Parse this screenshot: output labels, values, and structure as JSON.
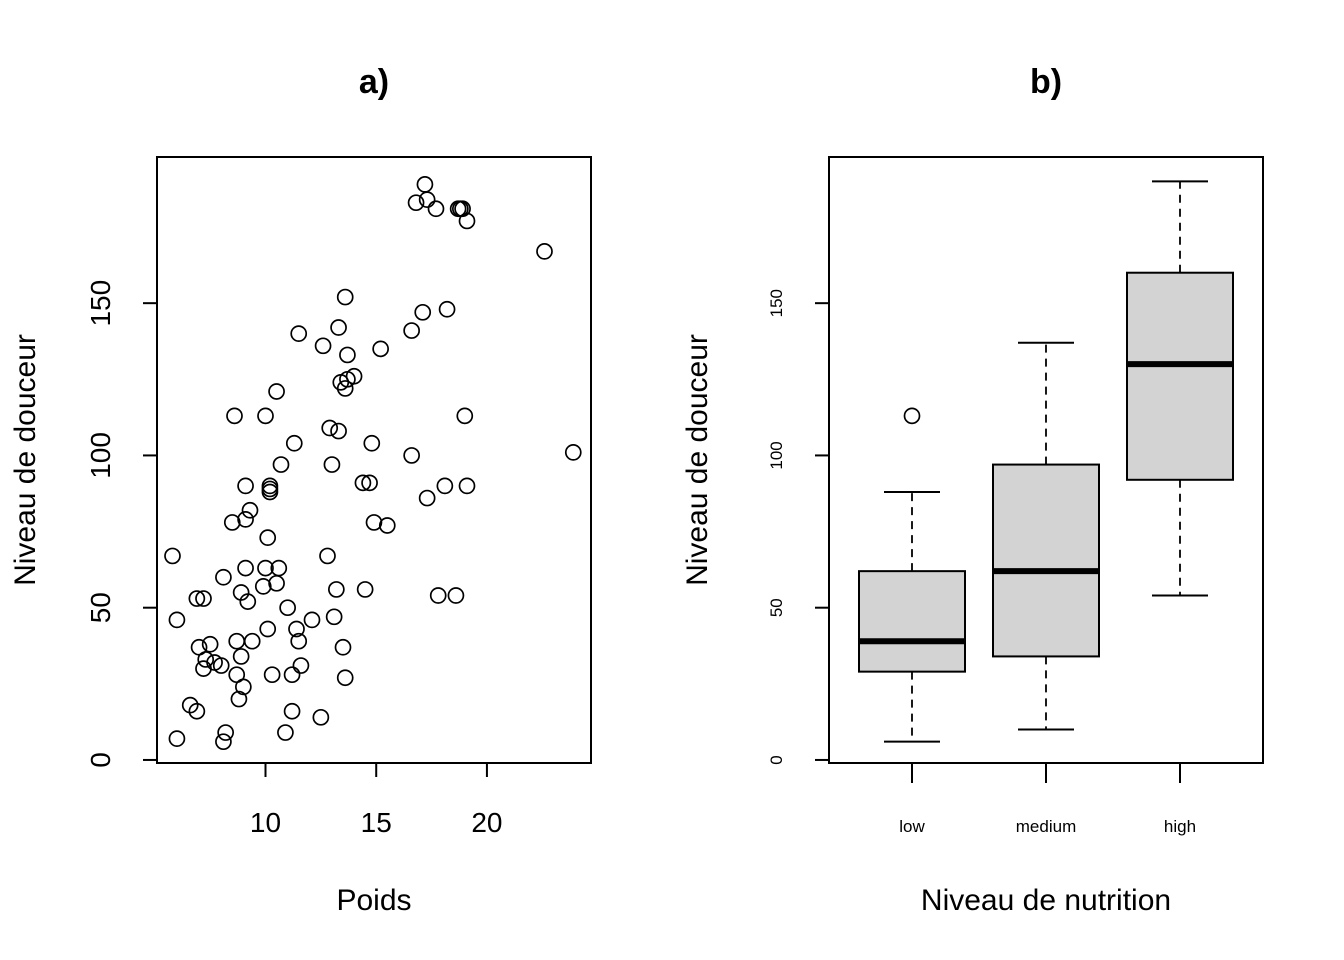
{
  "chart_data": [
    {
      "type": "scatter",
      "title": "a)",
      "xlabel": "Poids",
      "ylabel": "Niveau de douceur",
      "xlim": [
        5.1,
        24.7
      ],
      "ylim": [
        -1,
        198
      ],
      "xticks": [
        10,
        15,
        20
      ],
      "yticks": [
        0,
        50,
        100,
        150
      ],
      "grid": false,
      "marker": "open-circle",
      "points": [
        [
          5.8,
          67
        ],
        [
          6.0,
          46
        ],
        [
          6.0,
          7
        ],
        [
          6.6,
          18
        ],
        [
          6.9,
          16
        ],
        [
          6.9,
          53
        ],
        [
          7.0,
          37
        ],
        [
          7.2,
          53
        ],
        [
          7.2,
          30
        ],
        [
          7.3,
          33
        ],
        [
          7.5,
          38
        ],
        [
          7.7,
          32
        ],
        [
          8.0,
          31
        ],
        [
          8.1,
          60
        ],
        [
          8.1,
          6
        ],
        [
          8.2,
          9
        ],
        [
          8.5,
          78
        ],
        [
          8.6,
          113
        ],
        [
          8.7,
          39
        ],
        [
          8.7,
          28
        ],
        [
          8.8,
          20
        ],
        [
          8.9,
          55
        ],
        [
          8.9,
          34
        ],
        [
          9.0,
          24
        ],
        [
          9.1,
          90
        ],
        [
          9.1,
          63
        ],
        [
          9.1,
          79
        ],
        [
          9.2,
          52
        ],
        [
          9.3,
          82
        ],
        [
          9.4,
          39
        ],
        [
          9.9,
          57
        ],
        [
          10.0,
          63
        ],
        [
          10.0,
          113
        ],
        [
          10.1,
          73
        ],
        [
          10.1,
          43
        ],
        [
          10.2,
          90
        ],
        [
          10.2,
          89
        ],
        [
          10.2,
          88
        ],
        [
          10.3,
          28
        ],
        [
          10.5,
          121
        ],
        [
          10.5,
          58
        ],
        [
          10.6,
          63
        ],
        [
          10.7,
          97
        ],
        [
          10.9,
          9
        ],
        [
          11.0,
          50
        ],
        [
          11.2,
          16
        ],
        [
          11.2,
          28
        ],
        [
          11.3,
          104
        ],
        [
          11.4,
          43
        ],
        [
          11.5,
          39
        ],
        [
          11.5,
          140
        ],
        [
          11.6,
          31
        ],
        [
          12.1,
          46
        ],
        [
          12.5,
          14
        ],
        [
          12.6,
          136
        ],
        [
          12.8,
          67
        ],
        [
          12.9,
          109
        ],
        [
          13.0,
          97
        ],
        [
          13.1,
          47
        ],
        [
          13.2,
          56
        ],
        [
          13.3,
          108
        ],
        [
          13.3,
          142
        ],
        [
          13.4,
          124
        ],
        [
          13.5,
          37
        ],
        [
          13.6,
          27
        ],
        [
          13.6,
          122
        ],
        [
          13.6,
          152
        ],
        [
          13.7,
          133
        ],
        [
          13.7,
          125
        ],
        [
          14.0,
          126
        ],
        [
          14.4,
          91
        ],
        [
          14.5,
          56
        ],
        [
          14.7,
          91
        ],
        [
          14.8,
          104
        ],
        [
          14.9,
          78
        ],
        [
          15.2,
          135
        ],
        [
          15.5,
          77
        ],
        [
          16.6,
          141
        ],
        [
          16.6,
          100
        ],
        [
          16.8,
          183
        ],
        [
          17.1,
          147
        ],
        [
          17.2,
          189
        ],
        [
          17.3,
          86
        ],
        [
          17.3,
          184
        ],
        [
          17.7,
          181
        ],
        [
          17.8,
          54
        ],
        [
          18.1,
          90
        ],
        [
          18.2,
          148
        ],
        [
          18.6,
          54
        ],
        [
          18.7,
          181
        ],
        [
          18.8,
          181
        ],
        [
          18.9,
          181
        ],
        [
          19.0,
          113
        ],
        [
          19.1,
          177
        ],
        [
          19.1,
          90
        ],
        [
          22.6,
          167
        ],
        [
          23.9,
          101
        ]
      ]
    },
    {
      "type": "boxplot",
      "title": "b)",
      "xlabel": "Niveau de nutrition",
      "ylabel": "Niveau de douceur",
      "ylim": [
        -1,
        198
      ],
      "yticks": [
        0,
        50,
        100,
        150
      ],
      "categories": [
        "low",
        "medium",
        "high"
      ],
      "box_color": "#d3d3d3",
      "boxes": [
        {
          "whisker_low": 6,
          "q1": 29,
          "median": 39,
          "q3": 62,
          "whisker_high": 88,
          "outliers": [
            113
          ]
        },
        {
          "whisker_low": 10,
          "q1": 34,
          "median": 62,
          "q3": 97,
          "whisker_high": 137,
          "outliers": []
        },
        {
          "whisker_low": 54,
          "q1": 92,
          "median": 130,
          "q3": 160,
          "whisker_high": 190,
          "outliers": []
        }
      ]
    }
  ]
}
